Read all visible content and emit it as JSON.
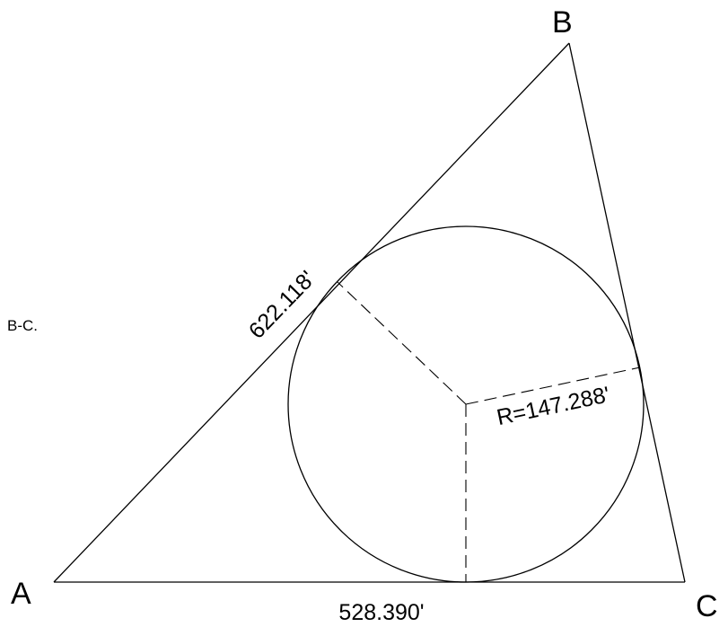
{
  "vertices": {
    "a": "A",
    "b": "B",
    "c": "C"
  },
  "dimensions": {
    "side_ab": "622.118'",
    "side_ac": "528.390'",
    "radius": "R=147.288'"
  },
  "side_note": "B-C."
}
